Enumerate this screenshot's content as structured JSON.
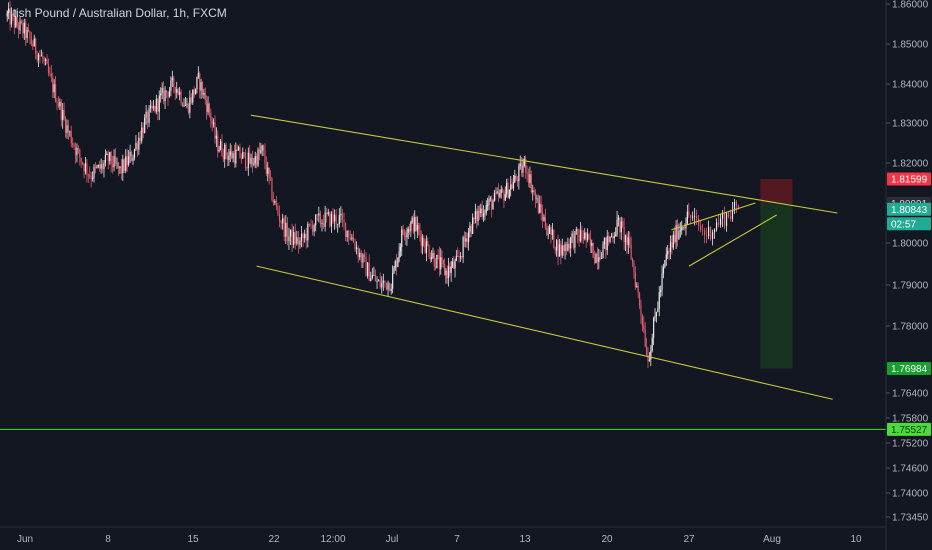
{
  "header": {
    "title": "ritish Pound / Australian Dollar, 1h, FXCM"
  },
  "colors": {
    "background": "#131722",
    "up": "#e8e8e8",
    "down": "#e05a6a",
    "trendline": "#c8c83a",
    "horizontal_line": "#4cdb3a",
    "stop_zone": "#5a1a20",
    "target_zone": "#15351f"
  },
  "chart_data": {
    "type": "candlestick",
    "symbol": "ritish Pound / Australian Dollar, 1h, FXCM",
    "ylim": [
      1.7335,
      1.8605
    ],
    "y_ticks": [
      "1.86000",
      "1.85000",
      "1.84000",
      "1.83000",
      "1.82000",
      "1.81000",
      "1.80000",
      "1.79000",
      "1.78000",
      "1.76400",
      "1.75800",
      "1.75200",
      "1.74600",
      "1.74000",
      "1.73450"
    ],
    "y_tick_values": [
      1.86,
      1.85,
      1.84,
      1.83,
      1.82,
      1.81,
      1.8,
      1.79,
      1.78,
      1.764,
      1.758,
      1.752,
      1.746,
      1.74,
      1.7345
    ],
    "x_ticks": [
      {
        "label": "Jun",
        "day": 0
      },
      {
        "label": "8",
        "day": 7
      },
      {
        "label": "15",
        "day": 14
      },
      {
        "label": "22",
        "day": 21
      },
      {
        "label": "12:00",
        "day": 25.5
      },
      {
        "label": "Jul",
        "day": 30
      },
      {
        "label": "7",
        "day": 36
      },
      {
        "label": "13",
        "day": 42
      },
      {
        "label": "20",
        "day": 49
      },
      {
        "label": "27",
        "day": 56
      },
      {
        "label": "Aug",
        "day": 61
      },
      {
        "label": "10",
        "day": 70
      }
    ],
    "price_path": [
      [
        -1.5,
        1.857
      ],
      [
        0,
        1.853
      ],
      [
        1.5,
        1.846
      ],
      [
        2.5,
        1.838
      ],
      [
        3.5,
        1.829
      ],
      [
        4.5,
        1.822
      ],
      [
        5.5,
        1.817
      ],
      [
        6.5,
        1.819
      ],
      [
        7,
        1.821
      ],
      [
        8,
        1.818
      ],
      [
        9,
        1.822
      ],
      [
        10,
        1.83
      ],
      [
        11.5,
        1.837
      ],
      [
        12.5,
        1.84
      ],
      [
        13.5,
        1.834
      ],
      [
        14.5,
        1.841
      ],
      [
        15.5,
        1.832
      ],
      [
        16,
        1.825
      ],
      [
        17,
        1.822
      ],
      [
        18,
        1.822
      ],
      [
        19,
        1.82
      ],
      [
        20,
        1.823
      ],
      [
        21,
        1.81
      ],
      [
        22,
        1.802
      ],
      [
        23,
        1.8
      ],
      [
        24,
        1.805
      ],
      [
        25,
        1.806
      ],
      [
        26,
        1.806
      ],
      [
        27,
        1.801
      ],
      [
        28,
        1.794
      ],
      [
        29,
        1.79
      ],
      [
        30,
        1.791
      ],
      [
        31,
        1.803
      ],
      [
        32,
        1.805
      ],
      [
        33,
        1.8
      ],
      [
        34,
        1.796
      ],
      [
        35,
        1.793
      ],
      [
        36,
        1.795
      ],
      [
        37,
        1.803
      ],
      [
        38,
        1.808
      ],
      [
        39,
        1.81
      ],
      [
        40,
        1.812
      ],
      [
        41,
        1.815
      ],
      [
        42,
        1.82
      ],
      [
        43,
        1.81
      ],
      [
        44,
        1.803
      ],
      [
        45,
        1.798
      ],
      [
        46,
        1.801
      ],
      [
        47,
        1.802
      ],
      [
        48,
        1.797
      ],
      [
        49,
        1.8
      ],
      [
        50,
        1.805
      ],
      [
        51,
        1.798
      ],
      [
        51.5,
        1.79
      ],
      [
        52,
        1.782
      ],
      [
        52.5,
        1.772
      ],
      [
        53,
        1.78
      ],
      [
        54,
        1.796
      ],
      [
        55,
        1.803
      ],
      [
        56,
        1.807
      ],
      [
        57,
        1.802
      ],
      [
        58,
        1.806
      ],
      [
        59,
        1.809
      ]
    ],
    "trendlines": [
      {
        "name": "upper-channel",
        "from": [
          19,
          1.832
        ],
        "to": [
          68,
          1.8075
        ]
      },
      {
        "name": "lower-channel",
        "from": [
          19.5,
          1.7945
        ],
        "to": [
          67.5,
          1.7625
        ]
      },
      {
        "name": "wedge-upper",
        "from": [
          54.5,
          1.8033
        ],
        "to": [
          60,
          1.81
        ]
      },
      {
        "name": "wedge-lower",
        "from": [
          56,
          1.7945
        ],
        "to": [
          61.5,
          1.807
        ]
      }
    ],
    "horizontal_line": 1.75527,
    "position": {
      "entry": 1.80991,
      "stop": 1.81599,
      "target": 1.76984,
      "from_day": 60.3,
      "to_day": 63.2
    },
    "price_labels": [
      {
        "value": "1.81599",
        "price": 1.81599,
        "bg": "#f23645",
        "fg": "#ffffff"
      },
      {
        "value": "1.80991",
        "price": 1.80991,
        "bg": "#2a2e39",
        "fg": "#d1d4dc"
      },
      {
        "value": "1.80843",
        "price": 1.80843,
        "bg": "#22ab94",
        "fg": "#ffffff"
      },
      {
        "value": "02:57",
        "price": 1.8048,
        "bg": "#22ab94",
        "fg": "#ffffff"
      },
      {
        "value": "1.76984",
        "price": 1.76984,
        "bg": "#17a02e",
        "fg": "#ffffff"
      },
      {
        "value": "1.75527",
        "price": 1.75527,
        "bg": "#4cdb3a",
        "fg": "#0b3b12"
      }
    ]
  }
}
